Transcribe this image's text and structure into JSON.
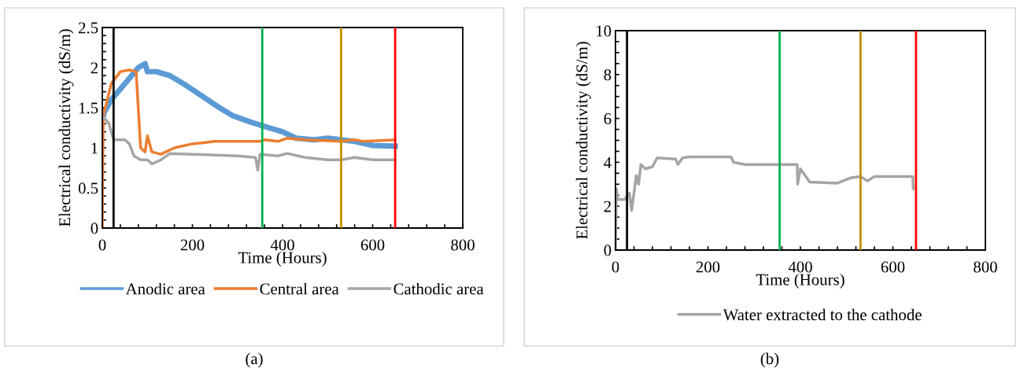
{
  "chart_data": [
    {
      "type": "line",
      "xlabel": "Time (Hours)",
      "ylabel": "Electrical conductivity (dS/m)",
      "xlim": [
        0,
        800
      ],
      "ylim": [
        0,
        2.5
      ],
      "xticks": [
        0,
        {
          "value": 40,
          "label": null
        },
        {
          "value": 80,
          "label": null
        },
        {
          "value": 120,
          "label": null
        },
        {
          "value": 160,
          "label": null
        },
        200,
        {
          "value": 240,
          "label": null
        },
        {
          "value": 280,
          "label": null
        },
        {
          "value": 320,
          "label": null
        },
        {
          "value": 360,
          "label": null
        },
        400,
        {
          "value": 440,
          "label": null
        },
        {
          "value": 480,
          "label": null
        },
        {
          "value": 520,
          "label": null
        },
        {
          "value": 560,
          "label": null
        },
        600,
        {
          "value": 640,
          "label": null
        },
        {
          "value": 680,
          "label": null
        },
        {
          "value": 720,
          "label": null
        },
        {
          "value": 760,
          "label": null
        },
        800
      ],
      "yticks": [
        0,
        {
          "value": 0.1,
          "label": null
        },
        {
          "value": 0.2,
          "label": null
        },
        {
          "value": 0.3,
          "label": null
        },
        {
          "value": 0.4,
          "label": null
        },
        0.5,
        {
          "value": 0.6,
          "label": null
        },
        {
          "value": 0.7,
          "label": null
        },
        {
          "value": 0.8,
          "label": null
        },
        {
          "value": 0.9,
          "label": null
        },
        1,
        {
          "value": 1.1,
          "label": null
        },
        {
          "value": 1.2,
          "label": null
        },
        {
          "value": 1.3,
          "label": null
        },
        {
          "value": 1.4,
          "label": null
        },
        1.5,
        {
          "value": 1.6,
          "label": null
        },
        {
          "value": 1.7,
          "label": null
        },
        {
          "value": 1.8,
          "label": null
        },
        {
          "value": 1.9,
          "label": null
        },
        2,
        {
          "value": 2.1,
          "label": null
        },
        {
          "value": 2.2,
          "label": null
        },
        {
          "value": 2.3,
          "label": null
        },
        {
          "value": 2.4,
          "label": null
        },
        2.5
      ],
      "grid": false,
      "legend": "bottom",
      "marker": "none",
      "line_style": "solid",
      "series": [
        {
          "name": "Anodic area",
          "color": "#5b9bd5",
          "x": [
            0,
            20,
            50,
            80,
            95,
            100,
            120,
            150,
            180,
            220,
            260,
            290,
            330,
            370,
            400,
            430,
            470,
            500,
            530,
            560,
            600,
            650
          ],
          "values": [
            1.4,
            1.6,
            1.8,
            2.0,
            2.05,
            1.95,
            1.95,
            1.9,
            1.8,
            1.65,
            1.5,
            1.4,
            1.32,
            1.25,
            1.2,
            1.12,
            1.1,
            1.12,
            1.1,
            1.08,
            1.03,
            1.02
          ]
        },
        {
          "name": "Central area",
          "color": "#ed7d31",
          "x": [
            0,
            2,
            20,
            40,
            60,
            75,
            85,
            95,
            100,
            110,
            130,
            160,
            200,
            250,
            350,
            360,
            390,
            410,
            450,
            530,
            560,
            580,
            650
          ],
          "values": [
            0,
            1.4,
            1.8,
            1.95,
            1.97,
            1.95,
            1.0,
            0.95,
            1.15,
            0.95,
            0.92,
            1.0,
            1.05,
            1.08,
            1.08,
            1.1,
            1.08,
            1.12,
            1.1,
            1.08,
            1.1,
            1.08,
            1.1
          ]
        },
        {
          "name": "Cathodic area",
          "color": "#a5a5a5",
          "x": [
            0,
            15,
            25,
            50,
            60,
            70,
            85,
            100,
            110,
            130,
            150,
            200,
            300,
            340,
            345,
            350,
            390,
            410,
            450,
            500,
            530,
            560,
            600,
            650
          ],
          "values": [
            1.4,
            1.3,
            1.1,
            1.1,
            1.05,
            0.9,
            0.85,
            0.85,
            0.8,
            0.85,
            0.93,
            0.92,
            0.9,
            0.88,
            0.72,
            0.92,
            0.9,
            0.93,
            0.88,
            0.85,
            0.85,
            0.88,
            0.85,
            0.85
          ]
        }
      ],
      "ref_lines": [
        {
          "axis": "x",
          "value": 25,
          "color": "#000000"
        },
        {
          "axis": "x",
          "value": 355,
          "color": "#00b050"
        },
        {
          "axis": "x",
          "value": 530,
          "color": "#bf9000"
        },
        {
          "axis": "x",
          "value": 650,
          "color": "#ff0000"
        }
      ],
      "annotations": [
        "(a)"
      ]
    },
    {
      "type": "line",
      "xlabel": "Time (Hours)",
      "ylabel": "Electrical conductivity (dS/m)",
      "xlim": [
        0,
        800
      ],
      "ylim": [
        0,
        10
      ],
      "xticks": [
        0,
        {
          "value": 40,
          "label": null
        },
        {
          "value": 80,
          "label": null
        },
        {
          "value": 120,
          "label": null
        },
        {
          "value": 160,
          "label": null
        },
        200,
        {
          "value": 240,
          "label": null
        },
        {
          "value": 280,
          "label": null
        },
        {
          "value": 320,
          "label": null
        },
        {
          "value": 360,
          "label": null
        },
        400,
        {
          "value": 440,
          "label": null
        },
        {
          "value": 480,
          "label": null
        },
        {
          "value": 520,
          "label": null
        },
        {
          "value": 560,
          "label": null
        },
        600,
        {
          "value": 640,
          "label": null
        },
        {
          "value": 680,
          "label": null
        },
        {
          "value": 720,
          "label": null
        },
        {
          "value": 760,
          "label": null
        },
        800
      ],
      "yticks": [
        0,
        {
          "value": 0.5,
          "label": null
        },
        {
          "value": 1,
          "label": null
        },
        {
          "value": 1.5,
          "label": null
        },
        2,
        {
          "value": 2.5,
          "label": null
        },
        {
          "value": 3,
          "label": null
        },
        {
          "value": 3.5,
          "label": null
        },
        4,
        {
          "value": 4.5,
          "label": null
        },
        {
          "value": 5,
          "label": null
        },
        {
          "value": 5.5,
          "label": null
        },
        6,
        {
          "value": 6.5,
          "label": null
        },
        {
          "value": 7,
          "label": null
        },
        {
          "value": 7.5,
          "label": null
        },
        8,
        {
          "value": 8.5,
          "label": null
        },
        {
          "value": 9,
          "label": null
        },
        {
          "value": 9.5,
          "label": null
        },
        10
      ],
      "grid": false,
      "legend": "bottom",
      "marker": "none",
      "line_style": "solid",
      "series": [
        {
          "name": "Water extracted to the cathode",
          "color": "#a5a5a5",
          "x": [
            0,
            2,
            5,
            20,
            30,
            35,
            40,
            45,
            50,
            55,
            65,
            80,
            90,
            130,
            135,
            145,
            160,
            250,
            255,
            280,
            393,
            394,
            400,
            420,
            480,
            510,
            530,
            545,
            560,
            643,
            644
          ],
          "values": [
            0,
            2.8,
            2.3,
            2.3,
            2.6,
            1.8,
            2.6,
            3.4,
            3.0,
            3.9,
            3.7,
            3.8,
            4.2,
            4.15,
            3.9,
            4.2,
            4.25,
            4.25,
            4.0,
            3.9,
            3.9,
            3.0,
            3.7,
            3.1,
            3.05,
            3.3,
            3.35,
            3.15,
            3.35,
            3.35,
            2.8
          ]
        }
      ],
      "ref_lines": [
        {
          "axis": "x",
          "value": 25,
          "color": "#000000"
        },
        {
          "axis": "x",
          "value": 355,
          "color": "#00b050"
        },
        {
          "axis": "x",
          "value": 530,
          "color": "#bf9000"
        },
        {
          "axis": "x",
          "value": 650,
          "color": "#ff0000"
        }
      ],
      "annotations": [
        "(b)"
      ]
    }
  ]
}
